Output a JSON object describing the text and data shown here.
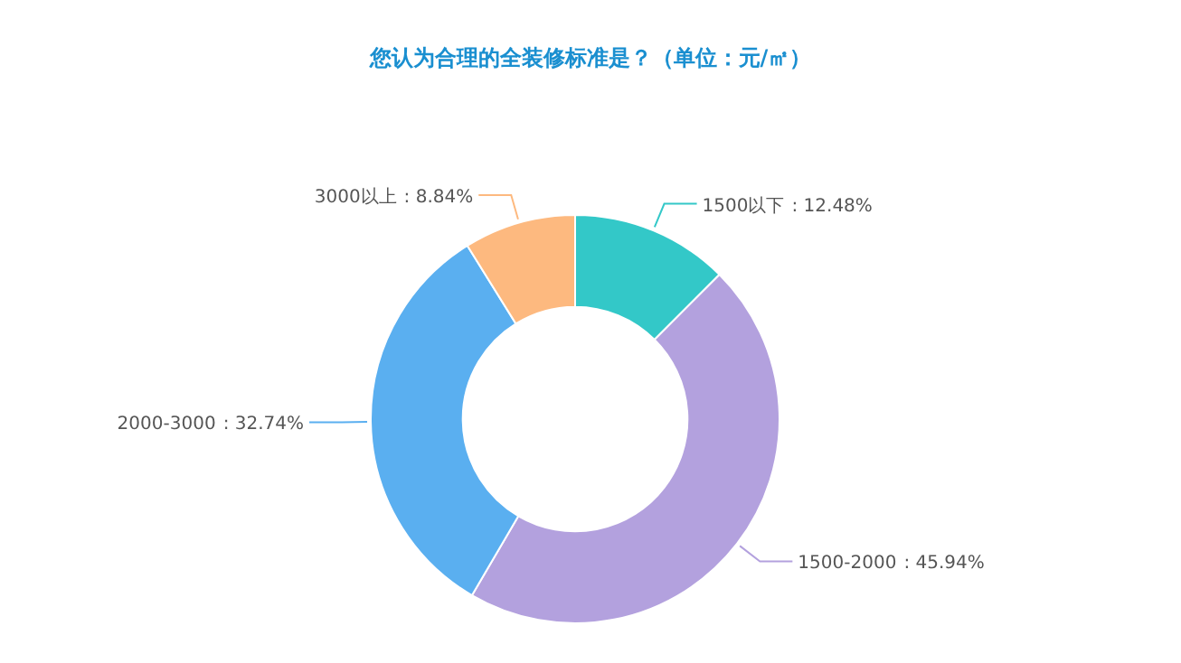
{
  "chart_data": {
    "type": "donut",
    "title": "您认为合理的全装修标准是？（单位：元/㎡）",
    "categories": [
      "1500以下",
      "1500-2000",
      "2000-3000",
      "3000以上"
    ],
    "values": [
      12.48,
      45.94,
      32.74,
      8.84
    ],
    "colors": [
      "#33c8c8",
      "#b3a1de",
      "#5aaff0",
      "#fdb97f"
    ],
    "value_labels": [
      ": 12.48%",
      ": 45.94%",
      ": 32.74%",
      ": 8.84%"
    ]
  }
}
